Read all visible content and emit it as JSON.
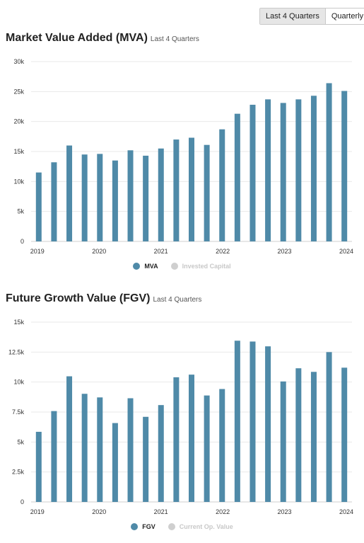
{
  "toggle": {
    "options": [
      "Last 4 Quarters",
      "Quarterly"
    ],
    "active_index": 0
  },
  "colors": {
    "bar": "#4f8aa8",
    "inactive": "#cfcfcf",
    "grid": "#e9e9e9",
    "axis_text": "#333333"
  },
  "charts": [
    {
      "title": "Market Value Added (MVA)",
      "subtitle": "Last 4 Quarters",
      "legend": [
        {
          "label": "MVA",
          "active": true
        },
        {
          "label": "Invested Capital",
          "active": false
        }
      ]
    },
    {
      "title": "Future Growth Value (FGV)",
      "subtitle": "Last 4 Quarters",
      "legend": [
        {
          "label": "FGV",
          "active": true
        },
        {
          "label": "Current Op. Value",
          "active": false
        }
      ]
    }
  ],
  "chart_data": [
    {
      "type": "bar",
      "title": "Market Value Added (MVA)",
      "subtitle": "Last 4 Quarters",
      "x_tick_labels": [
        "2019",
        "2020",
        "2021",
        "2022",
        "2023",
        "2024"
      ],
      "series": [
        {
          "name": "MVA",
          "values": [
            11500,
            13200,
            16000,
            14500,
            14600,
            13500,
            15200,
            14300,
            15500,
            17000,
            17300,
            16100,
            18700,
            21300,
            22800,
            23700,
            23100,
            23700,
            24300,
            26400,
            25100
          ]
        }
      ],
      "ylim": [
        0,
        30000
      ],
      "y_ticks": [
        0,
        5000,
        10000,
        15000,
        20000,
        25000,
        30000
      ],
      "y_tick_labels": [
        "0",
        "5k",
        "10k",
        "15k",
        "20k",
        "25k",
        "30k"
      ],
      "grid": true,
      "legend_position": "bottom"
    },
    {
      "type": "bar",
      "title": "Future Growth Value (FGV)",
      "subtitle": "Last 4 Quarters",
      "x_tick_labels": [
        "2019",
        "2020",
        "2021",
        "2022",
        "2023",
        "2024"
      ],
      "series": [
        {
          "name": "FGV",
          "values": [
            5850,
            7580,
            10480,
            9020,
            8720,
            6580,
            8650,
            7100,
            8080,
            10400,
            10620,
            8880,
            9420,
            13450,
            13380,
            12980,
            10050,
            11150,
            10850,
            12500,
            11200
          ]
        }
      ],
      "ylim": [
        0,
        15000
      ],
      "y_ticks": [
        0,
        2500,
        5000,
        7500,
        10000,
        12500,
        15000
      ],
      "y_tick_labels": [
        "0",
        "2.5k",
        "5k",
        "7.5k",
        "10k",
        "12.5k",
        "15k"
      ],
      "grid": true,
      "legend_position": "bottom"
    }
  ]
}
